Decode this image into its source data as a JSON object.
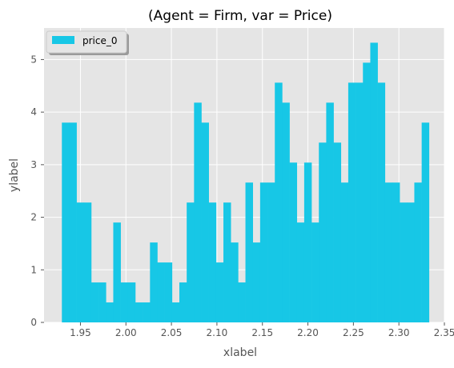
{
  "chart_data": {
    "type": "bar",
    "histogram": true,
    "title": "(Agent = Firm, var = Price)",
    "xlabel": "xlabel",
    "ylabel": "ylabel",
    "xlim": [
      1.91,
      2.35
    ],
    "ylim": [
      0,
      5.6
    ],
    "xticks": [
      1.95,
      2.0,
      2.05,
      2.1,
      2.15,
      2.2,
      2.25,
      2.3,
      2.35
    ],
    "xtick_labels": [
      "1.95",
      "2.00",
      "2.05",
      "2.10",
      "2.15",
      "2.20",
      "2.25",
      "2.30",
      "2.35"
    ],
    "yticks": [
      0,
      1,
      2,
      3,
      4,
      5
    ],
    "ytick_labels": [
      "0",
      "1",
      "2",
      "3",
      "4",
      "5"
    ],
    "grid": true,
    "legend_position": "top-left",
    "background": "#e5e5e5",
    "bar_color": "#17c7e6",
    "series": [
      {
        "name": "price_0",
        "bin_start": 1.9296,
        "bin_width": 0.00807,
        "values": [
          3.8,
          3.8,
          2.28,
          2.28,
          0.76,
          0.76,
          0.38,
          1.9,
          0.76,
          0.76,
          0.38,
          0.38,
          1.52,
          1.14,
          1.14,
          0.38,
          0.76,
          2.28,
          4.18,
          3.8,
          2.28,
          1.14,
          2.28,
          1.52,
          0.76,
          2.66,
          1.52,
          2.66,
          2.66,
          4.56,
          4.18,
          3.04,
          1.9,
          3.04,
          1.9,
          3.42,
          4.18,
          3.42,
          2.66,
          4.56,
          4.56,
          4.94,
          5.32,
          4.56,
          2.66,
          2.66,
          2.28,
          2.28,
          2.66,
          3.8
        ]
      }
    ]
  }
}
